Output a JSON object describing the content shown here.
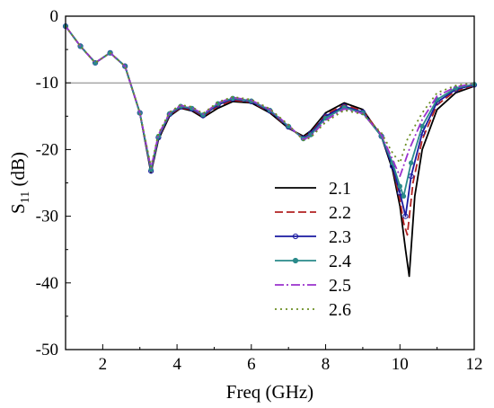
{
  "chart_data": {
    "type": "line",
    "title": "",
    "xlabel": "Freq (GHz)",
    "ylabel_main": "S",
    "ylabel_sub": "11",
    "ylabel_unit": " (dB)",
    "xlim": [
      1,
      12
    ],
    "ylim": [
      -50,
      0
    ],
    "xticks": [
      2,
      4,
      6,
      8,
      10,
      12
    ],
    "xtick_labels": [
      "2",
      "4",
      "6",
      "8",
      "10",
      "12"
    ],
    "yticks": [
      0,
      -10,
      -20,
      -30,
      -40,
      -50
    ],
    "ytick_labels": [
      "0",
      "-10",
      "-20",
      "-30",
      "-40",
      "-50"
    ],
    "reference_line": -10,
    "reference_color": "#808080",
    "grid": false,
    "legend_position": "right-center",
    "series": [
      {
        "name": "2.1",
        "color": "#000000",
        "dash": "solid",
        "marker": "none",
        "x": [
          1.0,
          1.4,
          1.8,
          2.2,
          2.6,
          3.0,
          3.3,
          3.5,
          3.8,
          4.1,
          4.4,
          4.7,
          5.1,
          5.5,
          6.0,
          6.5,
          7.0,
          7.4,
          7.6,
          8.0,
          8.5,
          9.0,
          9.5,
          9.8,
          10.0,
          10.15,
          10.25,
          10.4,
          10.6,
          11.0,
          11.5,
          12.0
        ],
        "y": [
          -1.5,
          -4.5,
          -7.0,
          -5.5,
          -7.5,
          -14.5,
          -23.5,
          -18.5,
          -15.0,
          -13.8,
          -14.2,
          -15.2,
          -13.8,
          -12.8,
          -13.0,
          -14.5,
          -16.8,
          -18.0,
          -17.2,
          -14.5,
          -13.0,
          -14.0,
          -18.0,
          -23.0,
          -28.5,
          -35.0,
          -39.0,
          -27.0,
          -20.0,
          -14.0,
          -11.5,
          -10.5
        ]
      },
      {
        "name": "2.2",
        "color": "#b22222",
        "dash": "dashed",
        "marker": "none",
        "x": [
          1.0,
          1.4,
          1.8,
          2.2,
          2.6,
          3.0,
          3.3,
          3.5,
          3.8,
          4.1,
          4.4,
          4.7,
          5.1,
          5.5,
          6.0,
          6.5,
          7.0,
          7.4,
          7.6,
          8.0,
          8.5,
          9.0,
          9.5,
          9.8,
          10.0,
          10.1,
          10.2,
          10.35,
          10.6,
          11.0,
          11.5,
          12.0
        ],
        "y": [
          -1.5,
          -4.5,
          -7.0,
          -5.5,
          -7.5,
          -14.5,
          -23.3,
          -18.3,
          -14.8,
          -13.7,
          -14.0,
          -15.0,
          -13.5,
          -12.6,
          -12.9,
          -14.3,
          -16.7,
          -18.2,
          -17.5,
          -14.8,
          -13.3,
          -14.2,
          -17.8,
          -22.5,
          -27.5,
          -31.0,
          -32.8,
          -25.0,
          -18.5,
          -13.3,
          -11.2,
          -10.4
        ]
      },
      {
        "name": "2.3",
        "color": "#1a1aa0",
        "dash": "solid",
        "marker": "circle",
        "x": [
          1.0,
          1.4,
          1.8,
          2.2,
          2.6,
          3.0,
          3.3,
          3.5,
          3.8,
          4.1,
          4.4,
          4.7,
          5.1,
          5.5,
          6.0,
          6.5,
          7.0,
          7.4,
          7.6,
          8.0,
          8.5,
          9.0,
          9.5,
          9.8,
          10.0,
          10.15,
          10.3,
          10.6,
          11.0,
          11.5,
          12.0
        ],
        "y": [
          -1.5,
          -4.5,
          -7.0,
          -5.5,
          -7.5,
          -14.5,
          -23.2,
          -18.2,
          -14.7,
          -13.6,
          -13.9,
          -14.9,
          -13.3,
          -12.4,
          -12.8,
          -14.2,
          -16.6,
          -18.3,
          -17.6,
          -15.0,
          -13.5,
          -14.4,
          -18.0,
          -22.5,
          -26.5,
          -30.0,
          -24.0,
          -17.5,
          -12.9,
          -11.0,
          -10.3
        ]
      },
      {
        "name": "2.4",
        "color": "#2a8a8a",
        "dash": "solid",
        "marker": "star",
        "x": [
          1.0,
          1.4,
          1.8,
          2.2,
          2.6,
          3.0,
          3.3,
          3.5,
          3.8,
          4.1,
          4.4,
          4.7,
          5.1,
          5.5,
          6.0,
          6.5,
          7.0,
          7.4,
          7.6,
          8.0,
          8.5,
          9.0,
          9.5,
          9.8,
          10.0,
          10.1,
          10.3,
          10.6,
          11.0,
          11.5,
          12.0
        ],
        "y": [
          -1.5,
          -4.5,
          -7.0,
          -5.5,
          -7.5,
          -14.5,
          -23.0,
          -18.0,
          -14.6,
          -13.5,
          -13.8,
          -14.8,
          -13.1,
          -12.3,
          -12.7,
          -14.1,
          -16.5,
          -18.4,
          -17.8,
          -15.3,
          -13.7,
          -14.5,
          -18.0,
          -22.0,
          -25.5,
          -27.0,
          -22.0,
          -16.5,
          -12.5,
          -10.8,
          -10.2
        ]
      },
      {
        "name": "2.5",
        "color": "#9a32cd",
        "dash": "dashdot",
        "marker": "none",
        "x": [
          1.0,
          1.4,
          1.8,
          2.2,
          2.6,
          3.0,
          3.3,
          3.5,
          3.8,
          4.1,
          4.4,
          4.7,
          5.1,
          5.5,
          6.0,
          6.5,
          7.0,
          7.4,
          7.6,
          8.0,
          8.5,
          9.0,
          9.5,
          9.8,
          10.0,
          10.25,
          10.6,
          11.0,
          11.5,
          12.0
        ],
        "y": [
          -1.5,
          -4.5,
          -7.0,
          -5.5,
          -7.5,
          -14.5,
          -22.8,
          -17.8,
          -14.5,
          -13.4,
          -13.7,
          -14.7,
          -13.0,
          -12.2,
          -12.6,
          -14.0,
          -16.4,
          -18.5,
          -18.0,
          -15.6,
          -13.9,
          -14.6,
          -17.8,
          -21.5,
          -24.0,
          -20.0,
          -15.5,
          -12.0,
          -10.6,
          -10.1
        ]
      },
      {
        "name": "2.6",
        "color": "#6b8e23",
        "dash": "dotted",
        "marker": "none",
        "x": [
          1.0,
          1.4,
          1.8,
          2.2,
          2.6,
          3.0,
          3.3,
          3.5,
          3.8,
          4.1,
          4.4,
          4.7,
          5.1,
          5.5,
          6.0,
          6.5,
          7.0,
          7.4,
          7.6,
          8.0,
          8.5,
          9.0,
          9.5,
          9.8,
          10.0,
          10.2,
          10.6,
          11.0,
          11.5,
          12.0
        ],
        "y": [
          -1.5,
          -4.5,
          -7.0,
          -5.5,
          -7.5,
          -14.5,
          -22.6,
          -17.6,
          -14.4,
          -13.3,
          -13.6,
          -14.6,
          -12.9,
          -12.1,
          -12.5,
          -13.9,
          -16.3,
          -18.6,
          -18.2,
          -15.9,
          -14.1,
          -14.7,
          -17.5,
          -20.5,
          -22.0,
          -18.5,
          -14.5,
          -11.5,
          -10.4,
          -10.0
        ]
      }
    ]
  }
}
